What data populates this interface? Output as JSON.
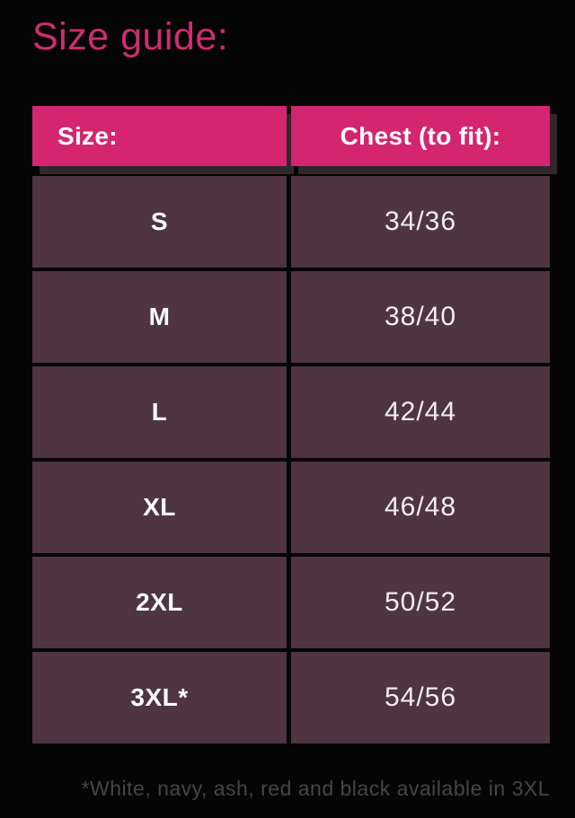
{
  "colors": {
    "background": "#050505",
    "brand_pink": "#d42570",
    "title_pink": "#cf2d6e",
    "row_purple": "#4f3441",
    "shadow": "#2f292c",
    "header_text": "#ffffff",
    "size_text": "#ffffff",
    "chest_text": "#f2edf0",
    "footnote_text": "#464646"
  },
  "page": {
    "title": "Size guide:",
    "footnote": "*White, navy, ash, red and black available in 3XL"
  },
  "table": {
    "columns": [
      {
        "label": "Size:"
      },
      {
        "label": "Chest (to fit):"
      }
    ],
    "rows": [
      {
        "size": "S",
        "chest": "34/36"
      },
      {
        "size": "M",
        "chest": "38/40"
      },
      {
        "size": "L",
        "chest": "42/44"
      },
      {
        "size": "XL",
        "chest": "46/48"
      },
      {
        "size": "2XL",
        "chest": "50/52"
      },
      {
        "size": "3XL*",
        "chest": "54/56"
      }
    ]
  }
}
